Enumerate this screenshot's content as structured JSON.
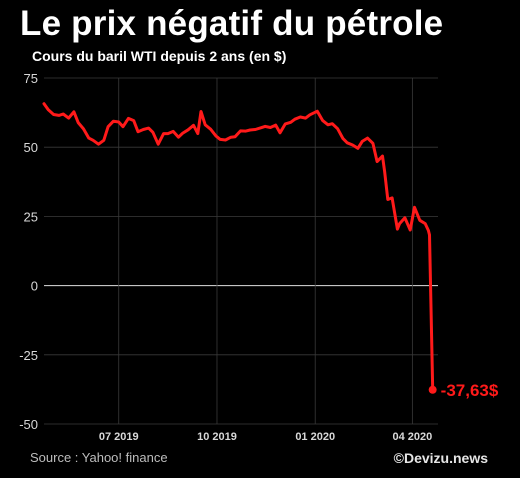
{
  "header": {
    "title": "Le prix négatif du pétrole",
    "subtitle": "Cours du baril WTI depuis 2 ans (en $)"
  },
  "footer": {
    "source": "Source : Yahoo! finance",
    "credit": "©Devizu.news"
  },
  "colors": {
    "background": "#000000",
    "line": "#ff1a1a",
    "grid": "#3a3a3a",
    "zero_line": "#e0e0e0"
  },
  "chart_data": {
    "type": "line",
    "title": "Le prix négatif du pétrole",
    "subtitle": "Cours du baril WTI depuis 2 ans (en $)",
    "xlabel": "",
    "ylabel": "",
    "ylim": [
      -50,
      75
    ],
    "yticks": [
      75,
      50,
      25,
      0,
      -25,
      -50
    ],
    "yticklabels": [
      "75",
      "50",
      "25",
      "0",
      "-25",
      "-50"
    ],
    "xlim": [
      "2019-04-22",
      "2020-04-25"
    ],
    "xticks": [
      "2019-07-01",
      "2019-10-01",
      "2020-01-01",
      "2020-04-01"
    ],
    "xticklabels": [
      "07 2019",
      "10 2019",
      "01 2020",
      "04 2020"
    ],
    "grid": true,
    "annotation": {
      "x": "2020-04-20",
      "y": -37.63,
      "text": "-37,63$"
    },
    "series": [
      {
        "name": "",
        "x": [
          "2019-04-22",
          "2019-04-26",
          "2019-05-01",
          "2019-05-06",
          "2019-05-10",
          "2019-05-15",
          "2019-05-20",
          "2019-05-24",
          "2019-05-29",
          "2019-06-03",
          "2019-06-07",
          "2019-06-12",
          "2019-06-17",
          "2019-06-21",
          "2019-06-26",
          "2019-07-01",
          "2019-07-05",
          "2019-07-10",
          "2019-07-15",
          "2019-07-19",
          "2019-07-24",
          "2019-07-29",
          "2019-08-02",
          "2019-08-07",
          "2019-08-12",
          "2019-08-16",
          "2019-08-21",
          "2019-08-26",
          "2019-08-30",
          "2019-09-04",
          "2019-09-09",
          "2019-09-13",
          "2019-09-16",
          "2019-09-20",
          "2019-09-25",
          "2019-09-30",
          "2019-10-04",
          "2019-10-09",
          "2019-10-14",
          "2019-10-18",
          "2019-10-23",
          "2019-10-28",
          "2019-11-01",
          "2019-11-06",
          "2019-11-11",
          "2019-11-15",
          "2019-11-20",
          "2019-11-25",
          "2019-11-29",
          "2019-12-04",
          "2019-12-09",
          "2019-12-13",
          "2019-12-18",
          "2019-12-23",
          "2019-12-27",
          "2020-01-03",
          "2020-01-08",
          "2020-01-13",
          "2020-01-17",
          "2020-01-22",
          "2020-01-27",
          "2020-01-31",
          "2020-02-05",
          "2020-02-10",
          "2020-02-14",
          "2020-02-19",
          "2020-02-24",
          "2020-02-28",
          "2020-03-04",
          "2020-03-06",
          "2020-03-09",
          "2020-03-13",
          "2020-03-18",
          "2020-03-20",
          "2020-03-25",
          "2020-03-30",
          "2020-04-03",
          "2020-04-08",
          "2020-04-13",
          "2020-04-16",
          "2020-04-17",
          "2020-04-20"
        ],
        "values": [
          65.7,
          63.5,
          61.8,
          61.5,
          62.0,
          60.5,
          62.8,
          58.9,
          56.6,
          53.3,
          52.5,
          51.1,
          52.5,
          57.4,
          59.4,
          59.1,
          57.4,
          60.4,
          59.6,
          55.6,
          56.4,
          56.9,
          55.4,
          51.1,
          54.9,
          54.9,
          55.7,
          53.6,
          55.1,
          56.3,
          57.9,
          54.9,
          62.9,
          58.1,
          56.5,
          54.1,
          52.8,
          52.6,
          53.6,
          53.8,
          55.9,
          55.8,
          56.2,
          56.4,
          57.0,
          57.5,
          57.1,
          58.0,
          55.2,
          58.4,
          59.0,
          60.1,
          60.9,
          60.5,
          61.7,
          63.0,
          59.6,
          58.1,
          58.5,
          56.7,
          53.1,
          51.6,
          50.8,
          49.6,
          52.1,
          53.3,
          51.4,
          44.8,
          46.8,
          41.3,
          31.1,
          31.7,
          20.4,
          22.4,
          24.5,
          20.1,
          28.3,
          23.6,
          22.4,
          19.9,
          18.3,
          -37.63
        ]
      }
    ]
  }
}
